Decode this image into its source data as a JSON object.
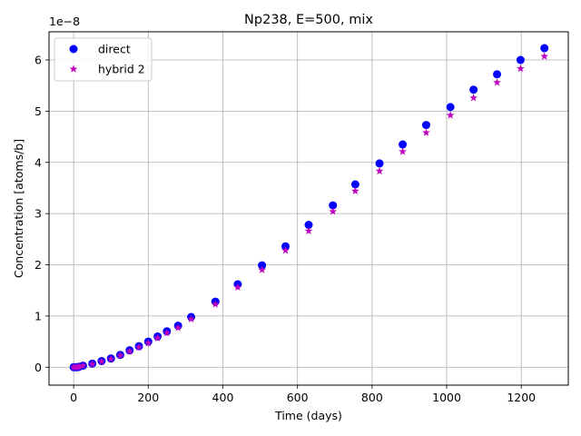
{
  "chart_data": {
    "type": "scatter",
    "title": "Np238, E=500, mix",
    "xlabel": "Time (days)",
    "ylabel": "Concentration [atoms/b]",
    "y_offset_label": "1e−8",
    "xlim": [
      -66,
      1326
    ],
    "ylim": [
      -0.35,
      6.55
    ],
    "y_scale_exponent": -8,
    "x_ticks": [
      0,
      200,
      400,
      600,
      800,
      1000,
      1200
    ],
    "y_ticks": [
      0,
      1,
      2,
      3,
      4,
      5,
      6
    ],
    "grid": true,
    "legend": {
      "location": "upper-left"
    },
    "series": [
      {
        "name": "direct",
        "marker": "circle",
        "color": "#0000ff",
        "x": [
          0,
          5,
          10,
          15,
          25,
          50,
          75,
          100,
          125,
          150,
          175,
          200,
          225,
          250,
          280,
          315,
          380,
          440,
          505,
          568,
          630,
          695,
          755,
          820,
          882,
          945,
          1010,
          1072,
          1135,
          1198,
          1262
        ],
        "y": [
          0.0,
          0.0,
          0.0,
          0.01,
          0.03,
          0.07,
          0.12,
          0.17,
          0.24,
          0.33,
          0.41,
          0.5,
          0.6,
          0.7,
          0.81,
          0.98,
          1.28,
          1.62,
          1.99,
          2.36,
          2.78,
          3.16,
          3.57,
          3.98,
          4.35,
          4.73,
          5.08,
          5.42,
          5.72,
          6.0,
          6.23
        ]
      },
      {
        "name": "hybrid 2",
        "marker": "star",
        "color": "#bf00bf",
        "x": [
          0,
          5,
          10,
          15,
          25,
          50,
          75,
          100,
          125,
          150,
          175,
          200,
          225,
          250,
          280,
          315,
          380,
          440,
          505,
          568,
          630,
          695,
          755,
          820,
          882,
          945,
          1010,
          1072,
          1135,
          1198,
          1262
        ],
        "y": [
          0.0,
          0.0,
          0.0,
          0.01,
          0.03,
          0.06,
          0.11,
          0.16,
          0.23,
          0.31,
          0.39,
          0.47,
          0.57,
          0.67,
          0.77,
          0.94,
          1.23,
          1.56,
          1.9,
          2.28,
          2.66,
          3.04,
          3.44,
          3.83,
          4.21,
          4.58,
          4.92,
          5.26,
          5.56,
          5.83,
          6.07
        ]
      }
    ]
  }
}
